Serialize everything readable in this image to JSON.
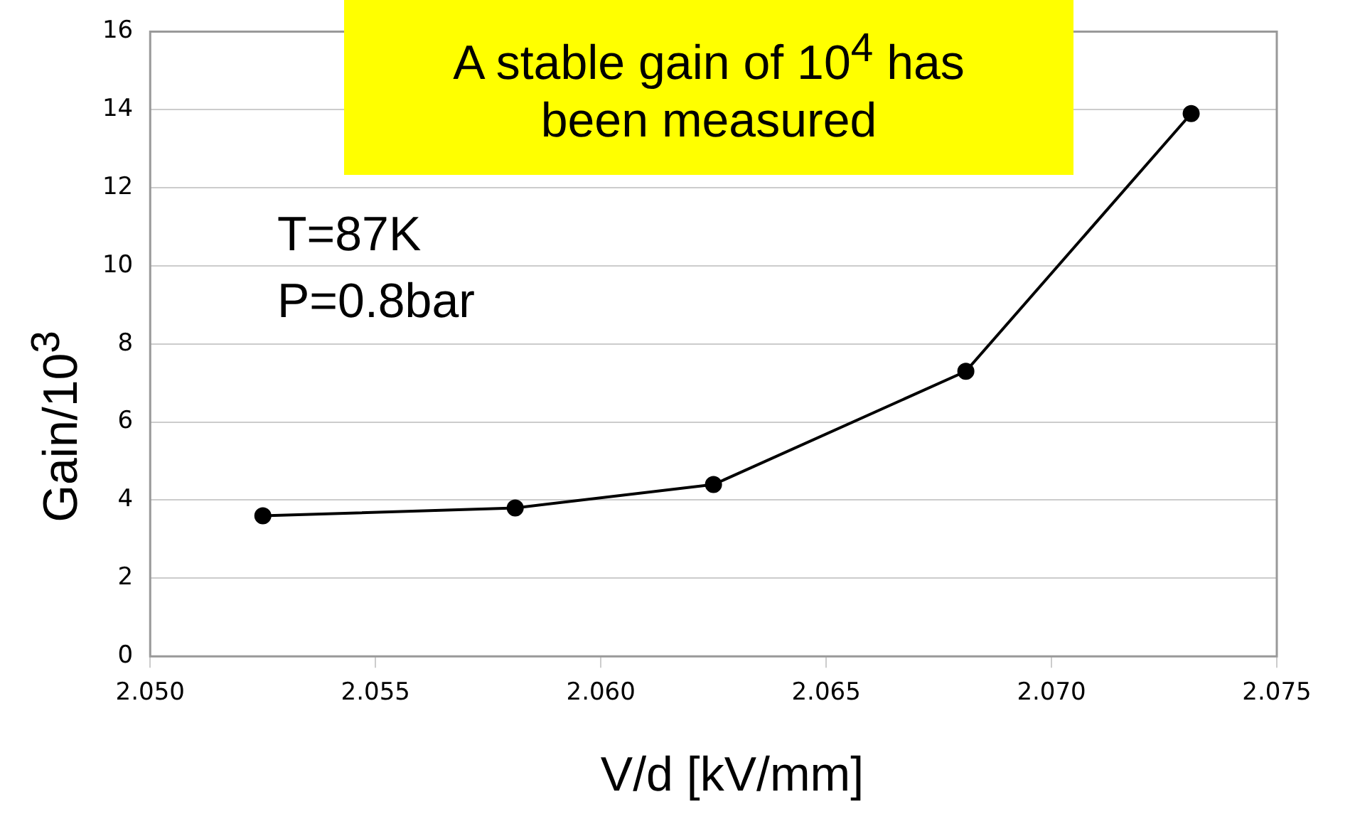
{
  "chart_data": {
    "type": "line",
    "xlabel": "V/d [kV/mm]",
    "ylabel": "Gain/10$^{3}$",
    "annotations": [
      "A stable gain of 10$^{4}$ has been measured",
      "T=87K",
      "P=0.8bar"
    ],
    "x": [
      2.0525,
      2.0581,
      2.0625,
      2.0681,
      2.0731
    ],
    "series": [
      {
        "color": "#000000",
        "values": [
          3.6,
          3.8,
          4.4,
          7.3,
          13.9
        ]
      }
    ],
    "xlim": [
      2.05,
      2.075
    ],
    "xticks": [
      {
        "value": 2.05,
        "label": "2.050"
      },
      {
        "value": 2.055,
        "label": "2.055"
      },
      {
        "value": 2.06,
        "label": "2.060"
      },
      {
        "value": 2.065,
        "label": "2.065"
      },
      {
        "value": 2.07,
        "label": "2.070"
      },
      {
        "value": 2.075,
        "label": "2.075"
      }
    ],
    "ylim": [
      0,
      16
    ],
    "yticks": [
      0,
      2,
      4,
      6,
      8,
      10,
      12,
      14,
      16
    ],
    "grid": "y",
    "legend": false,
    "marker": "circle",
    "line_style": "solid"
  }
}
